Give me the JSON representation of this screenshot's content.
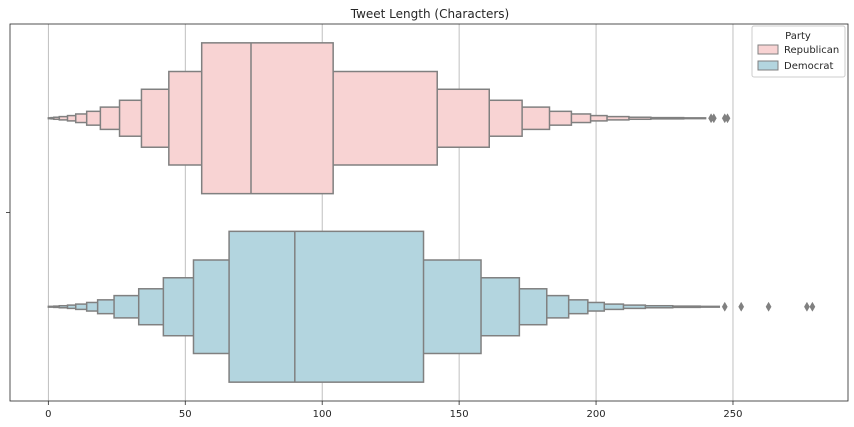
{
  "chart_data": {
    "type": "boxen",
    "title": "Tweet Length (Characters)",
    "xlabel": "",
    "ylabel": "",
    "xlim": [
      -14,
      292
    ],
    "xticks": [
      0,
      50,
      100,
      150,
      200,
      250
    ],
    "grid": "vertical",
    "legend": {
      "title": "Party",
      "placement": "top-right",
      "entries": [
        "Republican",
        "Democrat"
      ]
    },
    "series": [
      {
        "name": "Republican",
        "color": "#f8d3d3",
        "median": 74,
        "boxes": [
          [
            56,
            104
          ],
          [
            44,
            142
          ],
          [
            34,
            161
          ],
          [
            26,
            173
          ],
          [
            19,
            183
          ],
          [
            14,
            191
          ],
          [
            10,
            198
          ],
          [
            7,
            204
          ],
          [
            4,
            212
          ],
          [
            2,
            220
          ],
          [
            1,
            232
          ],
          [
            0,
            240
          ]
        ],
        "outliers": [
          242,
          243,
          247,
          248
        ]
      },
      {
        "name": "Democrat",
        "color": "#b3d5df",
        "median": 90,
        "boxes": [
          [
            66,
            137
          ],
          [
            53,
            158
          ],
          [
            42,
            172
          ],
          [
            33,
            182
          ],
          [
            24,
            190
          ],
          [
            18,
            197
          ],
          [
            14,
            203
          ],
          [
            10,
            210
          ],
          [
            7,
            218
          ],
          [
            4,
            228
          ],
          [
            2,
            238
          ],
          [
            0,
            245
          ]
        ],
        "outliers": [
          247,
          253,
          263,
          277,
          279
        ]
      }
    ]
  }
}
